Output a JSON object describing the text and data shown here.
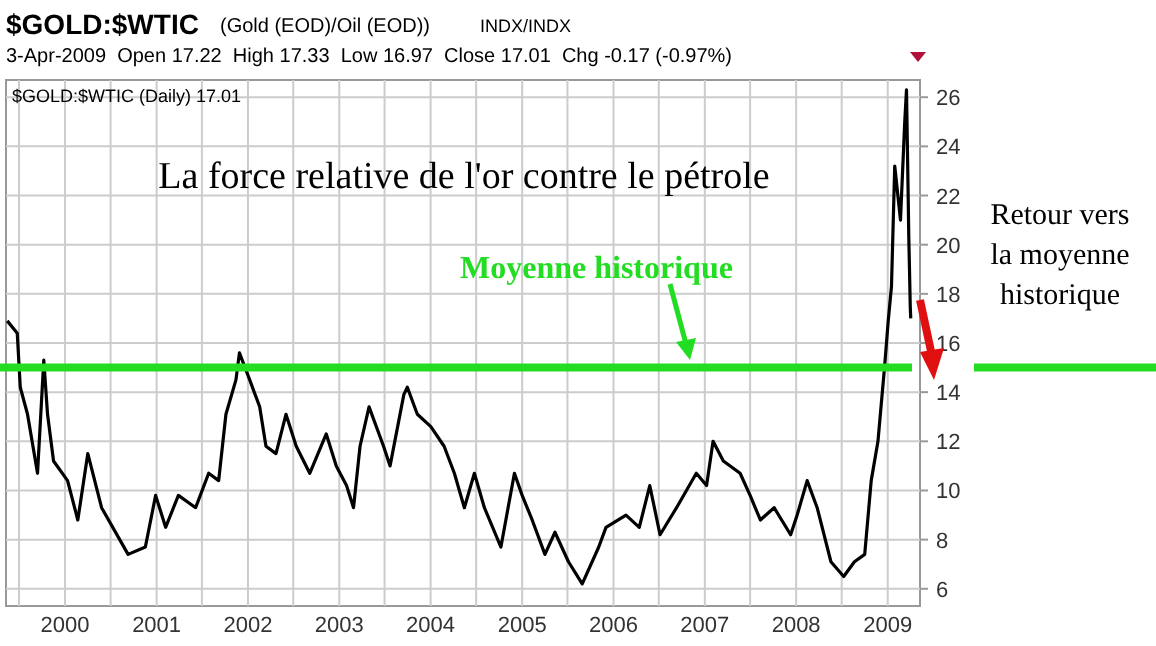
{
  "chart_data": {
    "type": "line",
    "title": "La force relative de l'or contre le pétrole",
    "annotations": [
      "$GOLD:$WTIC",
      "(Gold (EOD)/Oil (EOD))",
      "INDX/INDX",
      "3-Apr-2009  Open 17.22  High 17.33  Low 16.97  Close 17.01  Chg -0.17 (-0.97%)",
      "$GOLD:$WTIC (Daily) 17.01",
      "Retour vers la moyenne historique"
    ],
    "xlim": [
      "1999-05-10",
      "2009-05-10"
    ],
    "xticks": [
      {
        "value": "1999-07-01",
        "label": null
      },
      {
        "value": "2000-01-01",
        "label": "2000"
      },
      {
        "value": "2000-07-01",
        "label": null
      },
      {
        "value": "2001-01-01",
        "label": "2001"
      },
      {
        "value": "2001-07-01",
        "label": null
      },
      {
        "value": "2002-01-01",
        "label": "2002"
      },
      {
        "value": "2002-07-01",
        "label": null
      },
      {
        "value": "2003-01-01",
        "label": "2003"
      },
      {
        "value": "2003-07-01",
        "label": null
      },
      {
        "value": "2004-01-01",
        "label": "2004"
      },
      {
        "value": "2004-07-01",
        "label": null
      },
      {
        "value": "2005-01-01",
        "label": "2005"
      },
      {
        "value": "2005-07-01",
        "label": null
      },
      {
        "value": "2006-01-01",
        "label": "2006"
      },
      {
        "value": "2006-07-01",
        "label": null
      },
      {
        "value": "2007-01-01",
        "label": "2007"
      },
      {
        "value": "2007-07-01",
        "label": null
      },
      {
        "value": "2008-01-01",
        "label": "2008"
      },
      {
        "value": "2008-07-01",
        "label": null
      },
      {
        "value": "2009-01-01",
        "label": "2009"
      }
    ],
    "ylim": [
      5.3,
      26.7
    ],
    "yticks": [
      6,
      8,
      10,
      12,
      14,
      16,
      18,
      20,
      22,
      24,
      26
    ],
    "grid": true,
    "line_style": "solid",
    "ref_lines": [
      {
        "axis": "y",
        "value": 15,
        "label": "Moyenne historique",
        "color": "#22dd22"
      }
    ],
    "series": [
      {
        "color": "#000000",
        "x": [
          "1999-05-15",
          "1999-06-24",
          "1999-07-06",
          "1999-08-04",
          "1999-09-13",
          "1999-10-08",
          "1999-10-23",
          "1999-11-16",
          "2000-01-11",
          "2000-02-21",
          "2000-04-01",
          "2000-05-26",
          "2000-09-09",
          "2000-11-17",
          "2000-12-28",
          "2001-02-06",
          "2001-03-29",
          "2001-06-06",
          "2001-07-28",
          "2001-09-06",
          "2001-10-05",
          "2001-11-14",
          "2001-11-28",
          "2002-01-08",
          "2002-02-17",
          "2002-03-14",
          "2002-04-23",
          "2002-06-02",
          "2002-07-13",
          "2002-09-05",
          "2002-11-10",
          "2002-12-20",
          "2003-01-30",
          "2003-02-27",
          "2003-03-25",
          "2003-04-30",
          "2003-06-27",
          "2003-07-23",
          "2003-09-16",
          "2003-09-30",
          "2003-11-09",
          "2004-01-02",
          "2004-02-24",
          "2004-04-05",
          "2004-05-15",
          "2004-06-24",
          "2004-08-03",
          "2004-10-08",
          "2004-12-01",
          "2005-01-01",
          "2005-02-10",
          "2005-04-02",
          "2005-05-12",
          "2005-07-05",
          "2005-08-29",
          "2005-11-03",
          "2005-12-02",
          "2006-02-20",
          "2006-04-14",
          "2006-05-26",
          "2006-07-06",
          "2006-09-10",
          "2006-11-28",
          "2007-01-08",
          "2007-02-03",
          "2007-03-16",
          "2007-05-22",
          "2007-07-01",
          "2007-08-11",
          "2007-10-05",
          "2007-12-10",
          "2008-01-05",
          "2008-02-14",
          "2008-03-25",
          "2008-05-19",
          "2008-07-09",
          "2008-08-21",
          "2008-10-01",
          "2008-10-27",
          "2008-11-23",
          "2008-12-20",
          "2009-01-03",
          "2009-01-16",
          "2009-01-29",
          "2009-02-21",
          "2009-03-10",
          "2009-03-17",
          "2009-03-24",
          "2009-03-26",
          "2009-03-29",
          "2009-04-01",
          "2009-04-03"
        ],
        "values": [
          16.9,
          16.4,
          14.2,
          13.1,
          10.7,
          15.3,
          13.1,
          11.2,
          10.4,
          8.8,
          11.5,
          9.3,
          7.4,
          7.7,
          9.8,
          8.5,
          9.8,
          9.3,
          10.7,
          10.4,
          13.1,
          14.5,
          15.6,
          14.5,
          13.4,
          11.8,
          11.5,
          13.1,
          11.8,
          10.7,
          12.3,
          11.0,
          10.2,
          9.3,
          11.8,
          13.4,
          11.8,
          11.0,
          13.9,
          14.2,
          13.1,
          12.6,
          11.8,
          10.7,
          9.3,
          10.7,
          9.3,
          7.7,
          10.7,
          9.8,
          8.8,
          7.4,
          8.3,
          7.1,
          6.2,
          7.7,
          8.5,
          9.0,
          8.5,
          10.2,
          8.2,
          9.3,
          10.7,
          10.2,
          12.0,
          11.2,
          10.7,
          9.8,
          8.8,
          9.3,
          8.2,
          9.0,
          10.4,
          9.3,
          7.1,
          6.5,
          7.1,
          7.4,
          10.4,
          12.0,
          15.1,
          16.9,
          18.3,
          23.2,
          21.0,
          25.0,
          26.3,
          21.8,
          20.4,
          19.0,
          17.5,
          17.0
        ]
      }
    ]
  }
}
